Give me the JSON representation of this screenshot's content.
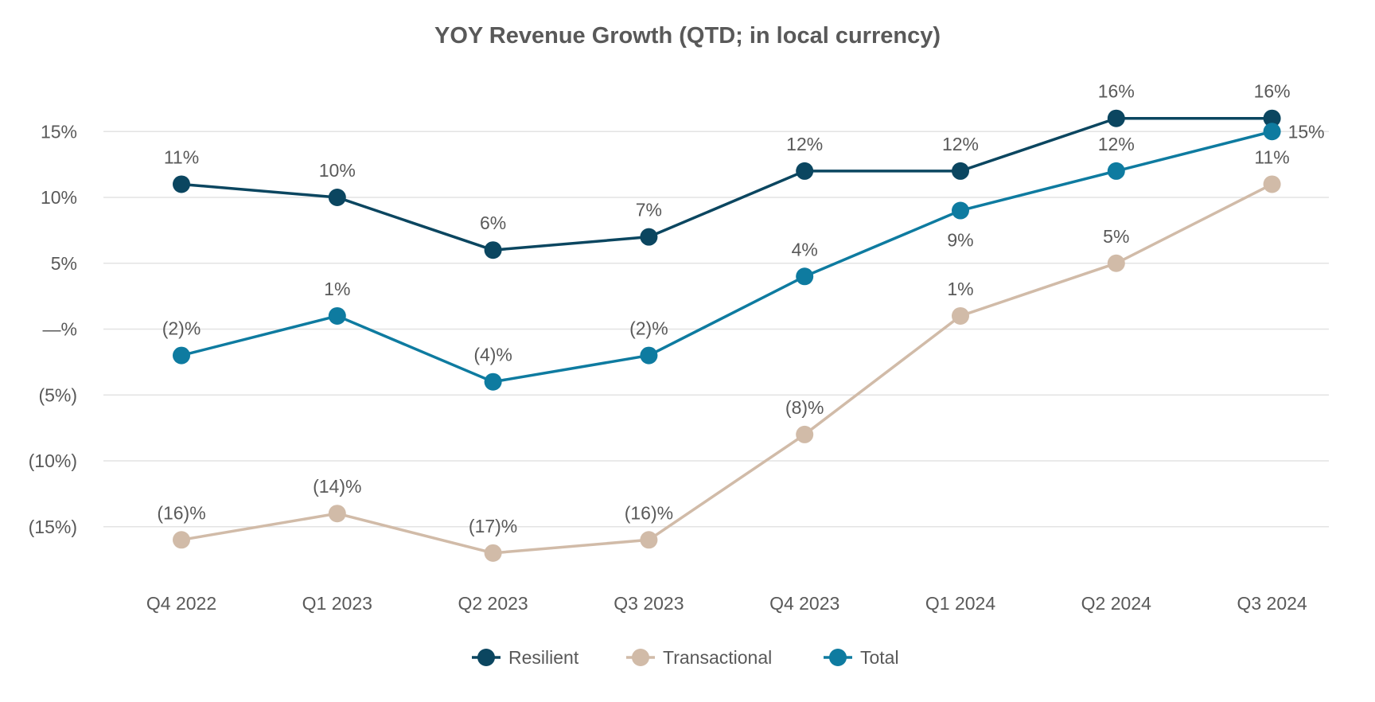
{
  "chart_data": {
    "type": "line",
    "title": "YOY Revenue Growth (QTD; in local currency)",
    "xlabel": "",
    "ylabel": "",
    "categories": [
      "Q4 2022",
      "Q1 2023",
      "Q2 2023",
      "Q3 2023",
      "Q4 2023",
      "Q1 2024",
      "Q2 2024",
      "Q3 2024"
    ],
    "ylim": [
      -20,
      20
    ],
    "yticks": [
      15,
      10,
      5,
      0,
      -5,
      -10,
      -15
    ],
    "ytick_labels": [
      "15%",
      "10%",
      "5%",
      "—%",
      "(5%)",
      "(10%)",
      "(15%)"
    ],
    "grid": true,
    "legend_position": "bottom",
    "series": [
      {
        "name": "Resilient",
        "color": "#0b4660",
        "values": [
          11,
          10,
          6,
          7,
          12,
          12,
          16,
          16
        ],
        "labels": [
          "11%",
          "10%",
          "6%",
          "7%",
          "12%",
          "12%",
          "16%",
          "16%"
        ]
      },
      {
        "name": "Transactional",
        "color": "#d1bba8",
        "values": [
          -16,
          -14,
          -17,
          -16,
          -8,
          1,
          5,
          11
        ],
        "labels": [
          "(16)%",
          "(14)%",
          "(17)%",
          "(16)%",
          "(8)%",
          "1%",
          "5%",
          "11%"
        ]
      },
      {
        "name": "Total",
        "color": "#0e7ba0",
        "values": [
          -2,
          1,
          -4,
          -2,
          4,
          9,
          12,
          15
        ],
        "labels": [
          "(2)%",
          "1%",
          "(4)%",
          "(2)%",
          "4%",
          "9%",
          "12%",
          "15%"
        ]
      }
    ]
  }
}
